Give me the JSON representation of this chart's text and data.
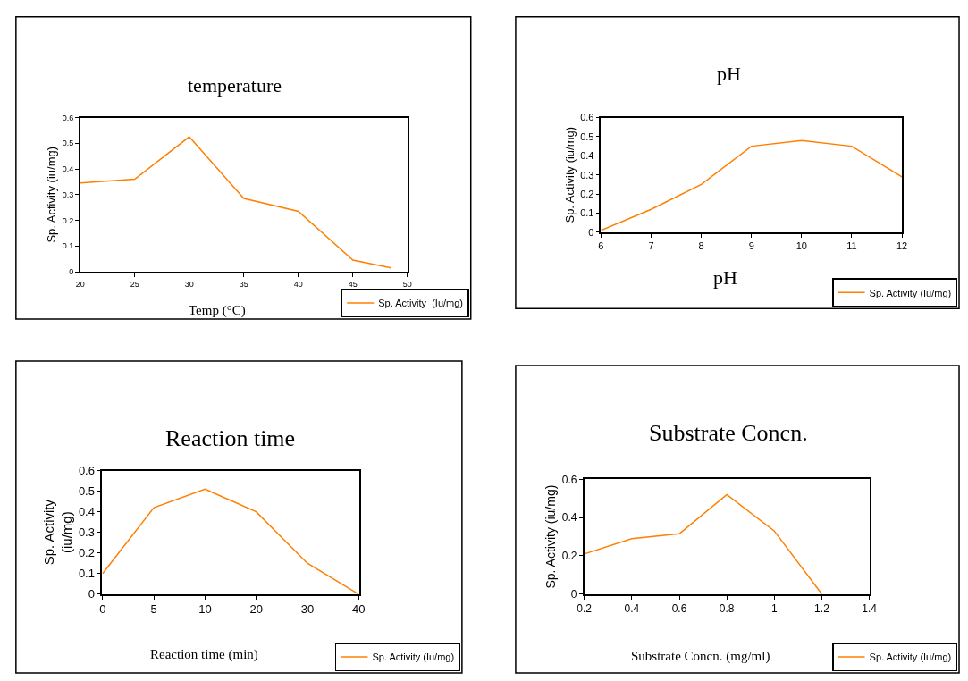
{
  "chart_data": [
    {
      "type": "line",
      "title": "temperature",
      "xlabel": "Temp (°C)",
      "ylabel": "Sp. Activity (iu/mg)",
      "x": [
        20,
        25,
        30,
        35,
        40,
        45,
        48.5
      ],
      "xlim": [
        20,
        50
      ],
      "xticks": [
        20,
        25,
        30,
        35,
        40,
        45,
        50
      ],
      "ylim": [
        0,
        0.6
      ],
      "yticks": [
        0,
        0.1,
        0.2,
        0.3,
        0.4,
        0.5,
        0.6
      ],
      "legend": "bottom right",
      "marker": "none",
      "line_style": "solid",
      "series": [
        {
          "name": "Sp. Activity  (Iu/mg)",
          "color": "#ff7f00",
          "values": [
            0.345,
            0.36,
            0.525,
            0.285,
            0.235,
            0.045,
            0.015
          ]
        }
      ]
    },
    {
      "type": "line",
      "title": "pH",
      "xlabel": "pH",
      "ylabel": "Sp. Activity (iu/mg)",
      "x": [
        6,
        7,
        8,
        9,
        10,
        11,
        12
      ],
      "xlim": [
        6,
        12
      ],
      "xticks": [
        6,
        7,
        8,
        9,
        10,
        11,
        12
      ],
      "ylim": [
        0,
        0.6
      ],
      "yticks": [
        0,
        0.1,
        0.2,
        0.3,
        0.4,
        0.5,
        0.6
      ],
      "legend": "bottom right",
      "marker": "none",
      "line_style": "solid",
      "series": [
        {
          "name": "Sp. Activity (Iu/mg)",
          "color": "#ff7f00",
          "values": [
            0.01,
            0.12,
            0.25,
            0.45,
            0.48,
            0.45,
            0.29
          ]
        }
      ]
    },
    {
      "type": "line",
      "title": "Reaction time",
      "xlabel": "Reaction time (min)",
      "ylabel": "Sp. Activity\n(iu/mg)",
      "categories": [
        "0",
        "5",
        "10",
        "20",
        "30",
        "40"
      ],
      "ylim": [
        0,
        0.6
      ],
      "yticks": [
        0,
        0.1,
        0.2,
        0.3,
        0.4,
        0.5,
        0.6
      ],
      "legend": "bottom right",
      "marker": "none",
      "line_style": "solid",
      "series": [
        {
          "name": "Sp. Activity (Iu/mg)",
          "color": "#ff7f00",
          "values": [
            0.1,
            0.42,
            0.51,
            0.4,
            0.15,
            0.0
          ]
        }
      ]
    },
    {
      "type": "line",
      "title": "Substrate Concn.",
      "xlabel": "Substrate Concn. (mg/ml)",
      "ylabel": "Sp. Activity (iu/mg)",
      "x": [
        0.2,
        0.4,
        0.6,
        0.8,
        1.0,
        1.2
      ],
      "xlim": [
        0.2,
        1.4
      ],
      "xticks": [
        0.2,
        0.4,
        0.6,
        0.8,
        1,
        1.2,
        1.4
      ],
      "ylim": [
        0,
        0.6
      ],
      "yticks": [
        0,
        0.2,
        0.4,
        0.6
      ],
      "legend": "bottom right",
      "marker": "none",
      "line_style": "solid",
      "series": [
        {
          "name": "Sp. Activity (Iu/mg)",
          "color": "#ff7f00",
          "values": [
            0.21,
            0.29,
            0.315,
            0.52,
            0.33,
            0.0
          ]
        }
      ]
    }
  ]
}
